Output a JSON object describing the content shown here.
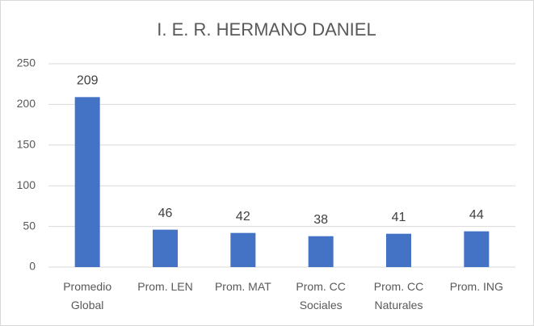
{
  "chart_data": {
    "type": "bar",
    "title": "I. E. R. HERMANO DANIEL",
    "categories": [
      "Promedio Global",
      "Prom. LEN",
      "Prom. MAT",
      "Prom. CC Sociales",
      "Prom. CC Naturales",
      "Prom. ING"
    ],
    "values": [
      209,
      46,
      42,
      38,
      41,
      44
    ],
    "color": "#4472c4",
    "ylim": [
      0,
      250
    ],
    "yticks": [
      0,
      50,
      100,
      150,
      200,
      250
    ],
    "grid": true
  }
}
